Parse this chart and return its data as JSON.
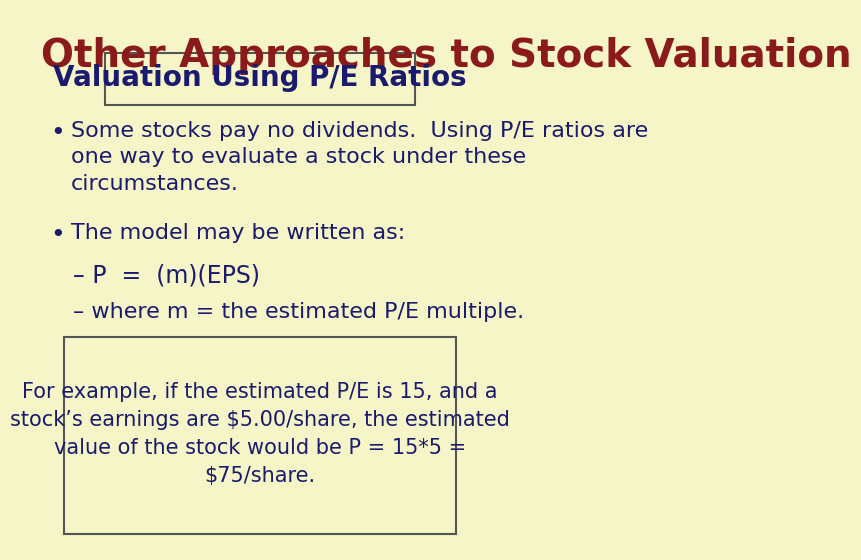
{
  "background_color": "#f5f5c8",
  "title": "Other Approaches to Stock Valuation",
  "title_color": "#8b1a1a",
  "title_fontsize": 28,
  "subtitle": "Valuation Using P/E Ratios",
  "subtitle_color": "#1a1a6e",
  "subtitle_fontsize": 20,
  "subtitle_box_bg": "#f5f5c8",
  "subtitle_box_edge": "#555555",
  "bullet_color": "#1a1a6e",
  "bullet_fontsize": 16,
  "bullets": [
    "Some stocks pay no dividends.  Using P/E ratios are\none way to evaluate a stock under these\ncircumstances.",
    "The model may be written as:"
  ],
  "sub_bullets": [
    "– P  =  (m)(EPS)",
    "– where m = the estimated P/E multiple."
  ],
  "example_text": "For example, if the estimated P/E is 15, and a\nstock’s earnings are $5.00/share, the estimated\nvalue of the stock would be P = 15*5 =\n$75/share.",
  "example_color": "#1a1a6e",
  "example_fontsize": 15,
  "example_box_edge": "#555555",
  "example_box_bg": "#f5f5c8"
}
